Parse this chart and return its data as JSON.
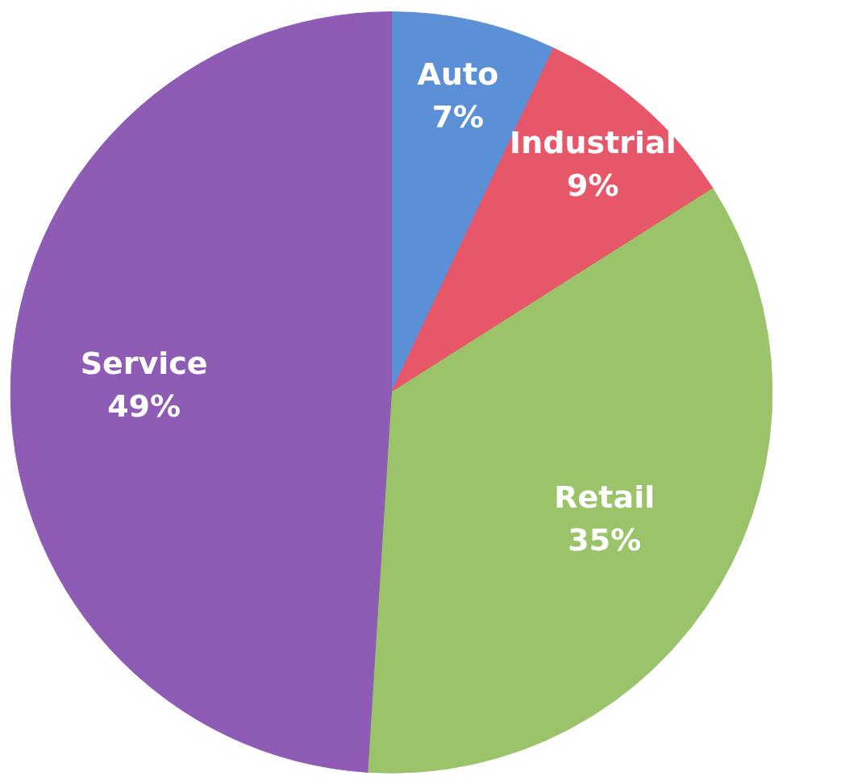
{
  "chart_data": {
    "type": "pie",
    "categories": [
      "Auto",
      "Industrial",
      "Retail",
      "Service"
    ],
    "values": [
      7,
      9,
      35,
      49
    ],
    "colors": [
      "#5b8fd6",
      "#e8566a",
      "#9bc46a",
      "#8e5bb5"
    ],
    "value_labels": [
      "7%",
      "9%",
      "35%",
      "49%"
    ]
  }
}
